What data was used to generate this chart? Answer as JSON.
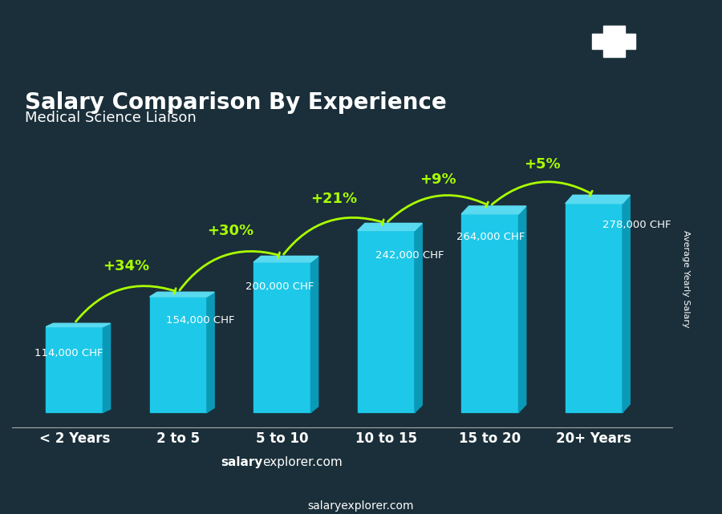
{
  "title": "Salary Comparison By Experience",
  "subtitle": "Medical Science Liaison",
  "categories": [
    "< 2 Years",
    "2 to 5",
    "5 to 10",
    "10 to 15",
    "15 to 20",
    "20+ Years"
  ],
  "values": [
    114000,
    154000,
    200000,
    242000,
    264000,
    278000
  ],
  "labels": [
    "114,000 CHF",
    "154,000 CHF",
    "200,000 CHF",
    "242,000 CHF",
    "264,000 CHF",
    "278,000 CHF"
  ],
  "pct_changes": [
    "+34%",
    "+30%",
    "+21%",
    "+9%",
    "+5%"
  ],
  "bar_color_top": "#00d4f5",
  "bar_color_bottom": "#0099cc",
  "bar_color_side": "#007aaa",
  "background_color": "#2a4a5a",
  "title_color": "#ffffff",
  "subtitle_color": "#ffffff",
  "label_color": "#ffffff",
  "pct_color": "#aaff00",
  "ylabel": "Average Yearly Salary",
  "footer": "salaryexplorer.com",
  "flag_bg": "#cc0000",
  "flag_cross": "#ffffff"
}
